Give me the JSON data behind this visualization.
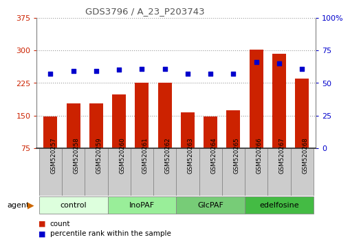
{
  "title": "GDS3796 / A_23_P203743",
  "samples": [
    "GSM520257",
    "GSM520258",
    "GSM520259",
    "GSM520260",
    "GSM520261",
    "GSM520262",
    "GSM520263",
    "GSM520264",
    "GSM520265",
    "GSM520266",
    "GSM520267",
    "GSM520268"
  ],
  "counts": [
    148,
    178,
    178,
    198,
    225,
    226,
    158,
    148,
    162,
    301,
    292,
    235
  ],
  "percentile_ranks": [
    57,
    59,
    59,
    60,
    61,
    61,
    57,
    57,
    57,
    66,
    65,
    61
  ],
  "groups": [
    {
      "label": "control",
      "start": 0,
      "end": 3,
      "color": "#ddffdd"
    },
    {
      "label": "InoPAF",
      "start": 3,
      "end": 6,
      "color": "#99ee99"
    },
    {
      "label": "GlcPAF",
      "start": 6,
      "end": 9,
      "color": "#77cc77"
    },
    {
      "label": "edelfosine",
      "start": 9,
      "end": 12,
      "color": "#44bb44"
    }
  ],
  "ylim_left": [
    75,
    375
  ],
  "ylim_right": [
    0,
    100
  ],
  "yticks_left": [
    75,
    150,
    225,
    300,
    375
  ],
  "yticks_right": [
    0,
    25,
    50,
    75,
    100
  ],
  "yticklabels_right": [
    "0",
    "25",
    "50",
    "75",
    "100%"
  ],
  "bar_color": "#cc2200",
  "dot_color": "#0000cc",
  "bar_width": 0.6,
  "title_color": "#555555",
  "grid_color": "#999999",
  "tick_bg_color": "#cccccc",
  "agent_arrow_color": "#cc6600",
  "left_tick_color": "#cc2200",
  "right_tick_color": "#0000cc"
}
